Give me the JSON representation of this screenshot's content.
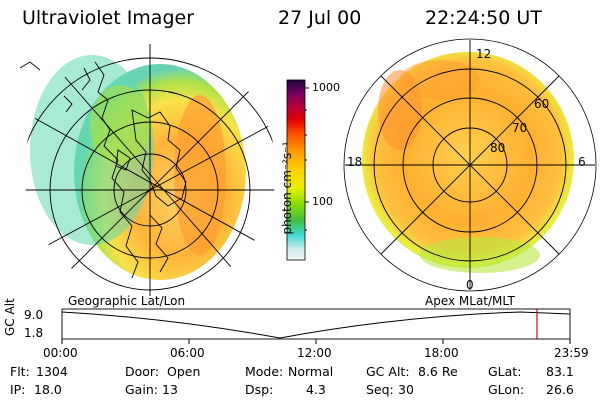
{
  "header": {
    "title": "Ultraviolet Imager",
    "date": "27 Jul 00",
    "time": "22:24:50 UT"
  },
  "left_panel": {
    "label": "Geographic Lat/Lon"
  },
  "right_panel": {
    "label": "Apex MLat/MLT",
    "mlt_labels": [
      "12",
      "18",
      "6",
      "0"
    ],
    "lat_labels": [
      "60",
      "70",
      "80"
    ]
  },
  "colorbar": {
    "unit_label": "photon cm⁻²s⁻¹",
    "ticks": [
      "1000",
      "100"
    ],
    "scale": "log",
    "colors": [
      "#f2f2f2",
      "#b8e8ee",
      "#40d8d0",
      "#40c040",
      "#80e000",
      "#e0f000",
      "#ffd000",
      "#ff9c00",
      "#ff5000",
      "#e00000",
      "#b00040",
      "#700060",
      "#300060"
    ]
  },
  "timeline": {
    "ylabel": "GC Alt",
    "ymax": "9.0",
    "ymin": "1.8",
    "ticks": [
      "00:00",
      "06:00",
      "12:00",
      "18:00",
      "23:59"
    ],
    "current_time_marker": "22:25",
    "marker_color": "#dd0000"
  },
  "status": {
    "flt_label": "Flt:",
    "flt_value": "1304",
    "ip_label": "IP:",
    "ip_value": "18.0",
    "door_label": "Door:",
    "door_value": "Open",
    "gain_label": "Gain:",
    "gain_value": "13",
    "mode_label": "Mode:",
    "mode_value": "Normal",
    "dsp_label": "Dsp:",
    "dsp_value": "4.3",
    "gcalt_label": "GC Alt:",
    "gcalt_value": "8.6 Re",
    "seq_label": "Seq:",
    "seq_value": "30",
    "glat_label": "GLat:",
    "glat_value": "83.1",
    "glon_label": "GLon:",
    "glon_value": "26.6"
  }
}
